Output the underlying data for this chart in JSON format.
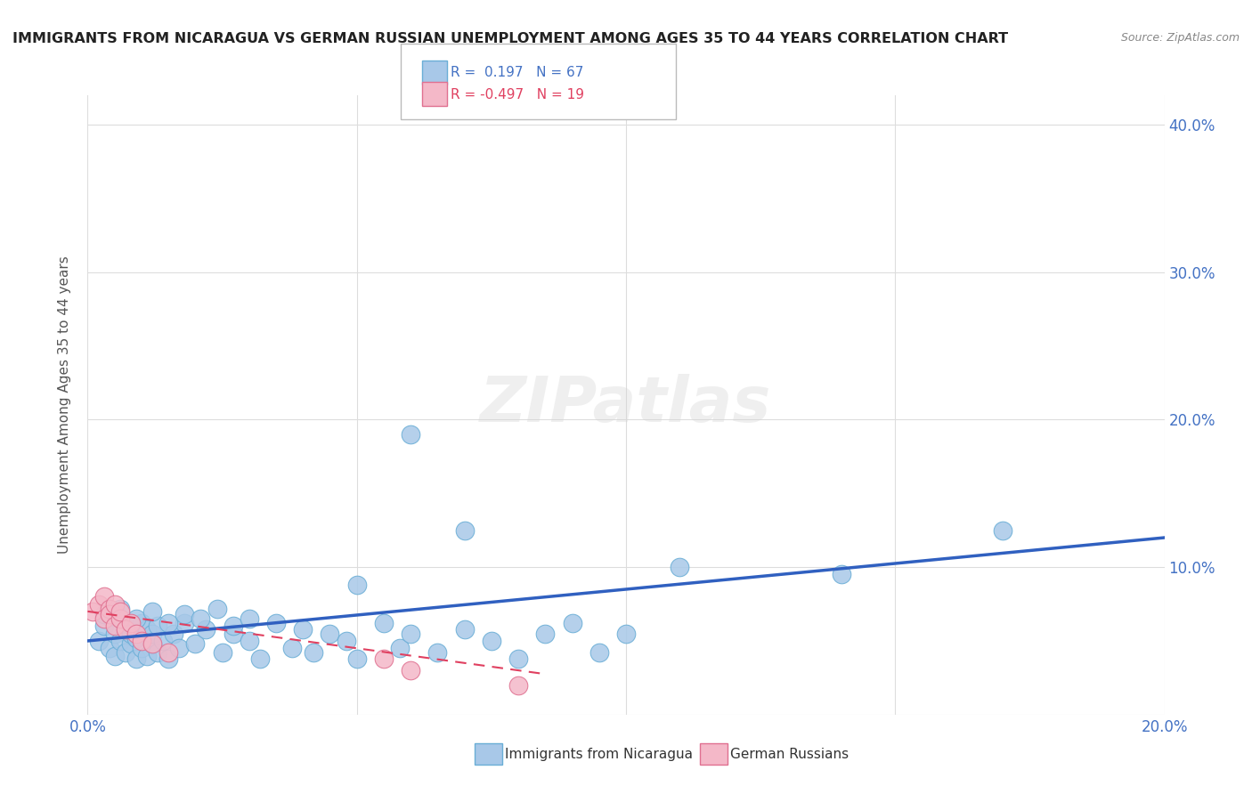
{
  "title": "IMMIGRANTS FROM NICARAGUA VS GERMAN RUSSIAN UNEMPLOYMENT AMONG AGES 35 TO 44 YEARS CORRELATION CHART",
  "source": "Source: ZipAtlas.com",
  "xlabel": "",
  "ylabel": "Unemployment Among Ages 35 to 44 years",
  "xlim": [
    0.0,
    0.2
  ],
  "ylim": [
    0.0,
    0.42
  ],
  "xticks": [
    0.0,
    0.05,
    0.1,
    0.15,
    0.2
  ],
  "yticks": [
    0.0,
    0.1,
    0.2,
    0.3,
    0.4
  ],
  "ytick_labels": [
    "",
    "10.0%",
    "20.0%",
    "30.0%",
    "40.0%"
  ],
  "xtick_labels": [
    "0.0%",
    "",
    "",
    "",
    "20.0%"
  ],
  "right_ytick_labels": [
    "",
    "10.0%",
    "20.0%",
    "30.0%",
    "40.0%"
  ],
  "legend1_R": "0.197",
  "legend1_N": "67",
  "legend2_R": "-0.497",
  "legend2_N": "19",
  "nicaragua_color": "#a8c8e8",
  "nicaragua_edge": "#6aaed6",
  "german_russian_color": "#f4b8c8",
  "german_russian_edge": "#e07090",
  "line1_color": "#3060c0",
  "line2_color": "#e04060",
  "watermark": "ZIPatlas",
  "background_color": "#ffffff",
  "grid_color": "#dddddd",
  "nicaragua_x": [
    0.002,
    0.003,
    0.004,
    0.005,
    0.005,
    0.006,
    0.006,
    0.007,
    0.007,
    0.008,
    0.008,
    0.008,
    0.009,
    0.009,
    0.01,
    0.01,
    0.011,
    0.011,
    0.012,
    0.012,
    0.013,
    0.013,
    0.014,
    0.015,
    0.016,
    0.017,
    0.018,
    0.02,
    0.022,
    0.025,
    0.027,
    0.03,
    0.032,
    0.035,
    0.038,
    0.04,
    0.042,
    0.045,
    0.048,
    0.05,
    0.055,
    0.058,
    0.06,
    0.065,
    0.07,
    0.075,
    0.08,
    0.085,
    0.09,
    0.095,
    0.1,
    0.003,
    0.006,
    0.009,
    0.012,
    0.015,
    0.018,
    0.021,
    0.024,
    0.027,
    0.03,
    0.05,
    0.06,
    0.07,
    0.11,
    0.14,
    0.17
  ],
  "nicaragua_y": [
    0.05,
    0.06,
    0.045,
    0.055,
    0.04,
    0.065,
    0.05,
    0.058,
    0.042,
    0.06,
    0.048,
    0.055,
    0.038,
    0.052,
    0.045,
    0.062,
    0.04,
    0.058,
    0.048,
    0.055,
    0.042,
    0.06,
    0.05,
    0.038,
    0.055,
    0.045,
    0.062,
    0.048,
    0.058,
    0.042,
    0.055,
    0.05,
    0.038,
    0.062,
    0.045,
    0.058,
    0.042,
    0.055,
    0.05,
    0.038,
    0.062,
    0.045,
    0.055,
    0.042,
    0.058,
    0.05,
    0.038,
    0.055,
    0.062,
    0.042,
    0.055,
    0.068,
    0.072,
    0.065,
    0.07,
    0.062,
    0.068,
    0.065,
    0.072,
    0.06,
    0.065,
    0.088,
    0.19,
    0.125,
    0.1,
    0.095,
    0.125
  ],
  "german_russian_x": [
    0.001,
    0.002,
    0.003,
    0.003,
    0.004,
    0.004,
    0.005,
    0.005,
    0.006,
    0.006,
    0.007,
    0.008,
    0.009,
    0.01,
    0.012,
    0.015,
    0.055,
    0.06,
    0.08
  ],
  "german_russian_y": [
    0.07,
    0.075,
    0.065,
    0.08,
    0.072,
    0.068,
    0.06,
    0.075,
    0.065,
    0.07,
    0.058,
    0.062,
    0.055,
    0.05,
    0.048,
    0.042,
    0.038,
    0.03,
    0.02
  ]
}
